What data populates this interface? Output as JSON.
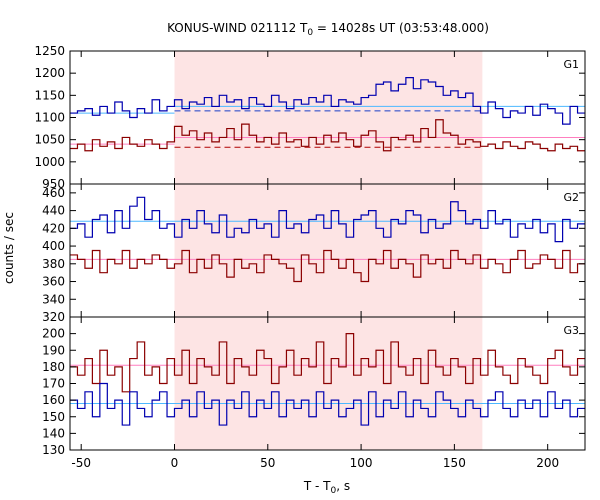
{
  "chart_data": {
    "type": "line",
    "title": {
      "prefix": "KONUS-WIND 021112 T",
      "sub": "0",
      "suffix": " = 14028s UT (03:53:48.000)"
    },
    "xlabel": {
      "prefix": "T - T",
      "sub": "0",
      "suffix": ", s"
    },
    "ylabel": "counts / sec",
    "xlim": [
      -56,
      220
    ],
    "xticks": [
      -50,
      0,
      50,
      100,
      150,
      200
    ],
    "highlight_interval": [
      0,
      165
    ],
    "colors": {
      "highlight": "#fde4e4",
      "blue_data": "#0000b0",
      "red_data": "#8b0000",
      "blue_fit": "#4db8ff",
      "red_fit": "#ff7fbf",
      "blue_dash": "#1a3fc8",
      "red_dash": "#b00000"
    },
    "panels": [
      {
        "name": "G1",
        "ylim": [
          950,
          1250
        ],
        "yticks": [
          950,
          1000,
          1050,
          1100,
          1150,
          1200,
          1250
        ],
        "series": [
          {
            "color_key": "blue_data",
            "x": [
              -56,
              -52,
              -48,
              -44,
              -40,
              -36,
              -32,
              -28,
              -24,
              -20,
              -16,
              -12,
              -8,
              -4,
              0,
              4,
              8,
              12,
              16,
              20,
              24,
              28,
              32,
              36,
              40,
              44,
              48,
              52,
              56,
              60,
              64,
              68,
              72,
              76,
              80,
              84,
              88,
              92,
              96,
              100,
              104,
              108,
              112,
              116,
              120,
              124,
              128,
              132,
              136,
              140,
              144,
              148,
              152,
              156,
              160,
              164,
              168,
              172,
              176,
              180,
              184,
              188,
              192,
              196,
              200,
              204,
              208,
              212,
              216
            ],
            "y": [
              1110,
              1115,
              1120,
              1105,
              1125,
              1110,
              1135,
              1115,
              1100,
              1120,
              1110,
              1140,
              1115,
              1125,
              1140,
              1120,
              1135,
              1130,
              1145,
              1125,
              1150,
              1135,
              1140,
              1120,
              1145,
              1130,
              1125,
              1150,
              1135,
              1120,
              1140,
              1130,
              1145,
              1135,
              1150,
              1125,
              1140,
              1135,
              1130,
              1145,
              1150,
              1175,
              1180,
              1160,
              1175,
              1190,
              1165,
              1185,
              1180,
              1170,
              1150,
              1160,
              1145,
              1155,
              1125,
              1110,
              1135,
              1120,
              1100,
              1115,
              1110,
              1125,
              1105,
              1130,
              1120,
              1110,
              1085,
              1125,
              1110
            ],
            "fit": [
              1110,
              1110
            ],
            "fit_color_key": "blue_fit",
            "fit_x": [
              -56,
              0
            ],
            "fit2": [
              1125,
              1125
            ],
            "fit2_x": [
              0,
              220
            ],
            "dash": [
              1115,
              1115
            ],
            "dash_x": [
              0,
              165
            ],
            "dash_color_key": "blue_dash"
          },
          {
            "color_key": "red_data",
            "x": [
              -56,
              -52,
              -48,
              -44,
              -40,
              -36,
              -32,
              -28,
              -24,
              -20,
              -16,
              -12,
              -8,
              -4,
              0,
              4,
              8,
              12,
              16,
              20,
              24,
              28,
              32,
              36,
              40,
              44,
              48,
              52,
              56,
              60,
              64,
              68,
              72,
              76,
              80,
              84,
              88,
              92,
              96,
              100,
              104,
              108,
              112,
              116,
              120,
              124,
              128,
              132,
              136,
              140,
              144,
              148,
              152,
              156,
              160,
              164,
              168,
              172,
              176,
              180,
              184,
              188,
              192,
              196,
              200,
              204,
              208,
              212,
              216
            ],
            "y": [
              1030,
              1040,
              1025,
              1050,
              1035,
              1045,
              1030,
              1055,
              1040,
              1035,
              1050,
              1040,
              1030,
              1045,
              1080,
              1060,
              1070,
              1050,
              1065,
              1045,
              1055,
              1075,
              1050,
              1085,
              1060,
              1045,
              1055,
              1040,
              1065,
              1045,
              1050,
              1035,
              1055,
              1040,
              1060,
              1045,
              1065,
              1050,
              1035,
              1060,
              1070,
              1045,
              1025,
              1055,
              1050,
              1060,
              1045,
              1075,
              1055,
              1095,
              1065,
              1060,
              1040,
              1050,
              1045,
              1035,
              1040,
              1030,
              1045,
              1035,
              1030,
              1045,
              1040,
              1030,
              1025,
              1040,
              1030,
              1035,
              1025
            ],
            "fit": [
              1040,
              1040
            ],
            "fit_color_key": "red_fit",
            "fit_x": [
              -56,
              0
            ],
            "fit2": [
              1055,
              1055
            ],
            "fit2_x": [
              0,
              220
            ],
            "dash": [
              1033,
              1033
            ],
            "dash_x": [
              0,
              165
            ],
            "dash_color_key": "red_dash"
          }
        ]
      },
      {
        "name": "G2",
        "ylim": [
          320,
          470
        ],
        "yticks": [
          320,
          340,
          360,
          380,
          400,
          420,
          440,
          460
        ],
        "series": [
          {
            "color_key": "blue_data",
            "x": [
              -56,
              -52,
              -48,
              -44,
              -40,
              -36,
              -32,
              -28,
              -24,
              -20,
              -16,
              -12,
              -8,
              -4,
              0,
              4,
              8,
              12,
              16,
              20,
              24,
              28,
              32,
              36,
              40,
              44,
              48,
              52,
              56,
              60,
              64,
              68,
              72,
              76,
              80,
              84,
              88,
              92,
              96,
              100,
              104,
              108,
              112,
              116,
              120,
              124,
              128,
              132,
              136,
              140,
              144,
              148,
              152,
              156,
              160,
              164,
              168,
              172,
              176,
              180,
              184,
              188,
              192,
              196,
              200,
              204,
              208,
              212,
              216
            ],
            "y": [
              420,
              425,
              410,
              430,
              435,
              415,
              440,
              420,
              445,
              455,
              430,
              440,
              420,
              425,
              410,
              430,
              420,
              440,
              425,
              415,
              435,
              410,
              420,
              415,
              430,
              420,
              425,
              410,
              440,
              420,
              425,
              415,
              430,
              435,
              420,
              440,
              425,
              410,
              430,
              435,
              440,
              420,
              410,
              430,
              425,
              440,
              435,
              415,
              430,
              420,
              425,
              450,
              440,
              425,
              430,
              420,
              440,
              425,
              430,
              410,
              425,
              420,
              430,
              415,
              425,
              405,
              430,
              420,
              425
            ],
            "fit": [
              428,
              428
            ],
            "fit_x": [
              -56,
              220
            ],
            "fit_color_key": "blue_fit"
          },
          {
            "color_key": "red_data",
            "x": [
              -56,
              -52,
              -48,
              -44,
              -40,
              -36,
              -32,
              -28,
              -24,
              -20,
              -16,
              -12,
              -8,
              -4,
              0,
              4,
              8,
              12,
              16,
              20,
              24,
              28,
              32,
              36,
              40,
              44,
              48,
              52,
              56,
              60,
              64,
              68,
              72,
              76,
              80,
              84,
              88,
              92,
              96,
              100,
              104,
              108,
              112,
              116,
              120,
              124,
              128,
              132,
              136,
              140,
              144,
              148,
              152,
              156,
              160,
              164,
              168,
              172,
              176,
              180,
              184,
              188,
              192,
              196,
              200,
              204,
              208,
              212,
              216
            ],
            "y": [
              390,
              385,
              375,
              395,
              370,
              385,
              380,
              395,
              375,
              385,
              380,
              390,
              385,
              375,
              380,
              395,
              370,
              385,
              375,
              390,
              380,
              365,
              385,
              375,
              380,
              370,
              390,
              385,
              380,
              375,
              360,
              390,
              380,
              370,
              395,
              385,
              375,
              385,
              370,
              360,
              385,
              380,
              395,
              375,
              385,
              380,
              365,
              390,
              380,
              385,
              375,
              395,
              385,
              380,
              390,
              375,
              385,
              380,
              370,
              385,
              395,
              375,
              380,
              390,
              385,
              375,
              395,
              370,
              380
            ],
            "fit": [
              385,
              385
            ],
            "fit_x": [
              -56,
              220
            ],
            "fit_color_key": "red_fit"
          }
        ]
      },
      {
        "name": "G3",
        "ylim": [
          130,
          210
        ],
        "yticks": [
          130,
          140,
          150,
          160,
          170,
          180,
          190,
          200
        ],
        "series": [
          {
            "color_key": "red_data",
            "x": [
              -56,
              -52,
              -48,
              -44,
              -40,
              -36,
              -32,
              -28,
              -24,
              -20,
              -16,
              -12,
              -8,
              -4,
              0,
              4,
              8,
              12,
              16,
              20,
              24,
              28,
              32,
              36,
              40,
              44,
              48,
              52,
              56,
              60,
              64,
              68,
              72,
              76,
              80,
              84,
              88,
              92,
              96,
              100,
              104,
              108,
              112,
              116,
              120,
              124,
              128,
              132,
              136,
              140,
              144,
              148,
              152,
              156,
              160,
              164,
              168,
              172,
              176,
              180,
              184,
              188,
              192,
              196,
              200,
              204,
              208,
              212,
              216
            ],
            "y": [
              180,
              175,
              185,
              170,
              190,
              175,
              180,
              165,
              185,
              195,
              175,
              180,
              170,
              185,
              175,
              190,
              170,
              185,
              180,
              175,
              195,
              170,
              185,
              180,
              175,
              190,
              185,
              170,
              180,
              190,
              175,
              185,
              180,
              195,
              170,
              185,
              180,
              200,
              175,
              185,
              180,
              190,
              170,
              195,
              180,
              175,
              185,
              170,
              190,
              180,
              175,
              185,
              180,
              170,
              185,
              175,
              190,
              180,
              175,
              170,
              185,
              180,
              175,
              170,
              185,
              190,
              180,
              175,
              185
            ],
            "fit": [
              181,
              181
            ],
            "fit_x": [
              -56,
              220
            ],
            "fit_color_key": "red_fit"
          },
          {
            "color_key": "blue_data",
            "x": [
              -56,
              -52,
              -48,
              -44,
              -40,
              -36,
              -32,
              -28,
              -24,
              -20,
              -16,
              -12,
              -8,
              -4,
              0,
              4,
              8,
              12,
              16,
              20,
              24,
              28,
              32,
              36,
              40,
              44,
              48,
              52,
              56,
              60,
              64,
              68,
              72,
              76,
              80,
              84,
              88,
              92,
              96,
              100,
              104,
              108,
              112,
              116,
              120,
              124,
              128,
              132,
              136,
              140,
              144,
              148,
              152,
              156,
              160,
              164,
              168,
              172,
              176,
              180,
              184,
              188,
              192,
              196,
              200,
              204,
              208,
              212,
              216
            ],
            "y": [
              160,
              155,
              165,
              150,
              170,
              155,
              160,
              145,
              165,
              155,
              150,
              160,
              165,
              150,
              155,
              160,
              150,
              165,
              155,
              160,
              145,
              160,
              155,
              165,
              150,
              160,
              155,
              165,
              150,
              160,
              155,
              160,
              150,
              165,
              155,
              160,
              150,
              155,
              160,
              145,
              165,
              150,
              160,
              155,
              165,
              150,
              160,
              155,
              150,
              165,
              160,
              155,
              150,
              160,
              155,
              150,
              160,
              165,
              155,
              150,
              160,
              155,
              160,
              150,
              165,
              155,
              160,
              150,
              155
            ],
            "fit": [
              158,
              158
            ],
            "fit_x": [
              -56,
              220
            ],
            "fit_color_key": "blue_fit"
          }
        ]
      }
    ]
  }
}
